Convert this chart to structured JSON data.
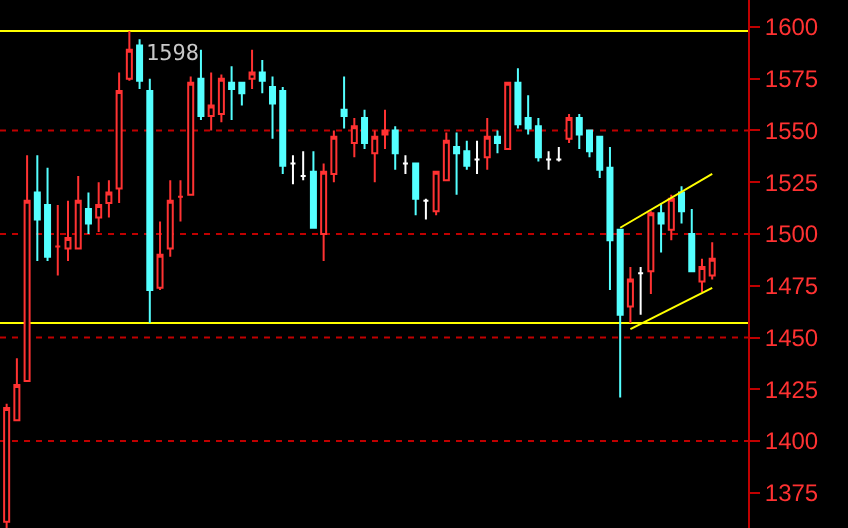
{
  "chart_data": {
    "type": "candlestick",
    "categories": [
      null,
      null,
      null,
      null,
      null,
      null,
      null,
      null,
      null,
      null,
      null,
      null,
      null,
      null,
      null,
      null,
      null,
      null,
      null,
      null,
      null,
      null,
      null,
      null,
      null,
      null,
      null,
      null,
      null,
      null,
      null,
      null,
      null,
      null,
      null,
      null,
      null,
      null,
      null,
      null,
      null,
      null,
      null,
      null,
      null,
      null,
      null,
      null,
      null,
      null,
      null,
      null,
      null,
      null,
      null,
      null,
      null,
      null,
      null,
      null,
      null,
      null,
      null,
      null,
      null,
      null,
      null,
      null,
      null,
      null
    ],
    "ohlc": [
      [
        1361,
        1418,
        1358,
        1416
      ],
      [
        1410,
        1440,
        1410,
        1427
      ],
      [
        1429,
        1538,
        1429,
        1516
      ],
      [
        1520,
        1538,
        1487,
        1507
      ],
      [
        1514,
        1532,
        1487,
        1489
      ],
      [
        1494,
        1514,
        1480,
        1494
      ],
      [
        1493,
        1516,
        1487,
        1498
      ],
      [
        1493,
        1528,
        1493,
        1516
      ],
      [
        1512,
        1520,
        1500,
        1505
      ],
      [
        1508,
        1525,
        1501,
        1514
      ],
      [
        1515,
        1526,
        1508,
        1520
      ],
      [
        1522,
        1578,
        1515,
        1569
      ],
      [
        1575,
        1598,
        1574,
        1589
      ],
      [
        1591,
        1594,
        1570,
        1574
      ],
      [
        1569,
        1575,
        1457,
        1473
      ],
      [
        1474,
        1506,
        1473,
        1490
      ],
      [
        1493,
        1526,
        1489,
        1516
      ],
      [
        1518,
        1526,
        1506,
        1518
      ],
      [
        1519,
        1576,
        1519,
        1573
      ],
      [
        1575,
        1589,
        1555,
        1557
      ],
      [
        1557,
        1578,
        1550,
        1562
      ],
      [
        1558,
        1577,
        1554,
        1575
      ],
      [
        1573,
        1581,
        1555,
        1570
      ],
      [
        1573,
        1573,
        1562,
        1568
      ],
      [
        1575,
        1589,
        1570,
        1578
      ],
      [
        1578,
        1584,
        1568,
        1574
      ],
      [
        1571,
        1576,
        1546,
        1563
      ],
      [
        1569,
        1571,
        1529,
        1533
      ],
      [
        1534,
        1538,
        1524,
        1534
      ],
      [
        1528,
        1540,
        1526,
        1528
      ],
      [
        1530,
        1540,
        1503,
        1503
      ],
      [
        1500,
        1534,
        1487,
        1530
      ],
      [
        1529,
        1550,
        1525,
        1547
      ],
      [
        1560,
        1576,
        1551,
        1557
      ],
      [
        1544,
        1556,
        1537,
        1552
      ],
      [
        1556,
        1560,
        1541,
        1544
      ],
      [
        1539,
        1550,
        1525,
        1547
      ],
      [
        1548,
        1560,
        1541,
        1550
      ],
      [
        1550,
        1552,
        1531,
        1539
      ],
      [
        1534,
        1538,
        1529,
        1534
      ],
      [
        1534,
        1534,
        1509,
        1517
      ],
      [
        1516,
        1517,
        1507,
        1516
      ],
      [
        1511,
        1530,
        1509,
        1530
      ],
      [
        1526,
        1549,
        1526,
        1545
      ],
      [
        1542,
        1549,
        1519,
        1539
      ],
      [
        1540,
        1545,
        1531,
        1533
      ],
      [
        1536,
        1545,
        1529,
        1536
      ],
      [
        1537,
        1556,
        1531,
        1547
      ],
      [
        1547,
        1550,
        1539,
        1544
      ],
      [
        1541,
        1573,
        1541,
        1573
      ],
      [
        1573,
        1580,
        1551,
        1553
      ],
      [
        1556,
        1567,
        1548,
        1551
      ],
      [
        1552,
        1556,
        1535,
        1537
      ],
      [
        1536,
        1540,
        1531,
        1536
      ],
      [
        1536,
        1542,
        1535,
        1536
      ],
      [
        1546,
        1558,
        1544,
        1556
      ],
      [
        1556,
        1558,
        1541,
        1548
      ],
      [
        1550,
        1550,
        1537,
        1540
      ],
      [
        1547,
        1547,
        1527,
        1531
      ],
      [
        1532,
        1542,
        1473,
        1497
      ],
      [
        1502,
        1502,
        1421,
        1461
      ],
      [
        1465,
        1484,
        1457,
        1478
      ],
      [
        1481,
        1484,
        1461,
        1481
      ],
      [
        1482,
        1511,
        1471,
        1510
      ],
      [
        1510,
        1515,
        1491,
        1505
      ],
      [
        1502,
        1519,
        1497,
        1517
      ],
      [
        1520,
        1523,
        1505,
        1511
      ],
      [
        1500,
        1512,
        1482,
        1482
      ],
      [
        1477,
        1488,
        1472,
        1484
      ],
      [
        1480,
        1496,
        1478,
        1488
      ]
    ],
    "colors": [
      "#ff3232",
      "#ff3232",
      "#ff3232",
      "#54ffff",
      "#54ffff",
      "#ff3232",
      "#ff3232",
      "#ff3232",
      "#54ffff",
      "#ff3232",
      "#ff3232",
      "#ff3232",
      "#ff3232",
      "#54ffff",
      "#54ffff",
      "#ff3232",
      "#ff3232",
      "#ff3232",
      "#ff3232",
      "#54ffff",
      "#ff3232",
      "#ff3232",
      "#54ffff",
      "#54ffff",
      "#ff3232",
      "#54ffff",
      "#54ffff",
      "#54ffff",
      "#ffffff",
      "#ffffff",
      "#54ffff",
      "#ff3232",
      "#ff3232",
      "#54ffff",
      "#ff3232",
      "#54ffff",
      "#ff3232",
      "#ff3232",
      "#54ffff",
      "#ffffff",
      "#54ffff",
      "#ffffff",
      "#ff3232",
      "#ff3232",
      "#54ffff",
      "#54ffff",
      "#ffffff",
      "#ff3232",
      "#54ffff",
      "#ff3232",
      "#54ffff",
      "#54ffff",
      "#54ffff",
      "#ffffff",
      "#ffffff",
      "#ff3232",
      "#54ffff",
      "#54ffff",
      "#54ffff",
      "#54ffff",
      "#54ffff",
      "#ff3232",
      "#ffffff",
      "#ff3232",
      "#54ffff",
      "#ff3232",
      "#54ffff",
      "#54ffff",
      "#ff3232",
      "#ff3232"
    ],
    "series": [
      {
        "type": "line",
        "color": "#ffff00",
        "values": [
          null,
          null,
          null,
          null,
          null,
          null,
          null,
          null,
          null,
          null,
          null,
          null,
          null,
          null,
          null,
          null,
          null,
          null,
          null,
          null,
          null,
          null,
          null,
          null,
          null,
          null,
          null,
          null,
          null,
          null,
          null,
          null,
          null,
          null,
          null,
          null,
          null,
          null,
          null,
          null,
          null,
          null,
          null,
          null,
          null,
          null,
          null,
          null,
          null,
          null,
          null,
          null,
          null,
          null,
          null,
          null,
          null,
          null,
          null,
          null,
          1503,
          null,
          null,
          null,
          null,
          null,
          null,
          null,
          null,
          1529
        ]
      },
      {
        "type": "line",
        "color": "#ffff00",
        "values": [
          null,
          null,
          null,
          null,
          null,
          null,
          null,
          null,
          null,
          null,
          null,
          null,
          null,
          null,
          null,
          null,
          null,
          null,
          null,
          null,
          null,
          null,
          null,
          null,
          null,
          null,
          null,
          null,
          null,
          null,
          null,
          null,
          null,
          null,
          null,
          null,
          null,
          null,
          null,
          null,
          null,
          null,
          null,
          null,
          null,
          null,
          null,
          null,
          null,
          null,
          null,
          null,
          null,
          null,
          null,
          null,
          null,
          null,
          null,
          null,
          null,
          1454,
          null,
          null,
          null,
          null,
          null,
          null,
          null,
          1474
        ]
      }
    ],
    "ref_lines": [
      {
        "axis": "y",
        "value": 1598,
        "color": "#ffff00",
        "line_style": "solid"
      },
      {
        "axis": "y",
        "value": 1457,
        "color": "#ffff00",
        "line_style": "solid"
      },
      {
        "axis": "y",
        "value": 1550,
        "color": "#c00000",
        "line_style": "dotted"
      },
      {
        "axis": "y",
        "value": 1500,
        "color": "#c00000",
        "line_style": "dotted"
      },
      {
        "axis": "y",
        "value": 1450,
        "color": "#c00000",
        "line_style": "dotted"
      },
      {
        "axis": "y",
        "value": 1400,
        "color": "#c00000",
        "line_style": "dotted"
      }
    ],
    "annotations": [
      {
        "text": "1598",
        "y": 1598
      }
    ],
    "ylim": [
      1358,
      1613
    ],
    "yticks": [
      1375,
      1400,
      1425,
      1450,
      1475,
      1500,
      1525,
      1550,
      1575,
      1600
    ],
    "tick_labels": "y",
    "grid": false
  }
}
